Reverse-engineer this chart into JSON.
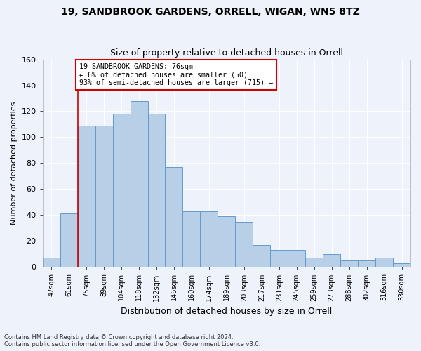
{
  "title1": "19, SANDBROOK GARDENS, ORRELL, WIGAN, WN5 8TZ",
  "title2": "Size of property relative to detached houses in Orrell",
  "xlabel": "Distribution of detached houses by size in Orrell",
  "ylabel": "Number of detached properties",
  "categories": [
    "47sqm",
    "61sqm",
    "75sqm",
    "89sqm",
    "104sqm",
    "118sqm",
    "132sqm",
    "146sqm",
    "160sqm",
    "174sqm",
    "189sqm",
    "203sqm",
    "217sqm",
    "231sqm",
    "245sqm",
    "259sqm",
    "273sqm",
    "288sqm",
    "302sqm",
    "316sqm",
    "330sqm"
  ],
  "bar_values": [
    7,
    41,
    109,
    109,
    118,
    128,
    118,
    77,
    43,
    43,
    39,
    35,
    17,
    13,
    13,
    7,
    10,
    5,
    5,
    7,
    3
  ],
  "bar_color": "#b8cfe8",
  "bar_edge_color": "#6699cc",
  "annotation_text_line1": "19 SANDBROOK GARDENS: 76sqm",
  "annotation_text_line2": "← 6% of detached houses are smaller (50)",
  "annotation_text_line3": "93% of semi-detached houses are larger (715) →",
  "red_line_color": "#cc0000",
  "annotation_box_facecolor": "#ffffff",
  "annotation_box_edgecolor": "#cc0000",
  "red_line_bin": 1,
  "ylim": [
    0,
    160
  ],
  "yticks": [
    0,
    20,
    40,
    60,
    80,
    100,
    120,
    140,
    160
  ],
  "footnote1": "Contains HM Land Registry data © Crown copyright and database right 2024.",
  "footnote2": "Contains public sector information licensed under the Open Government Licence v3.0.",
  "bg_color": "#eef2fb",
  "grid_color": "#ffffff"
}
